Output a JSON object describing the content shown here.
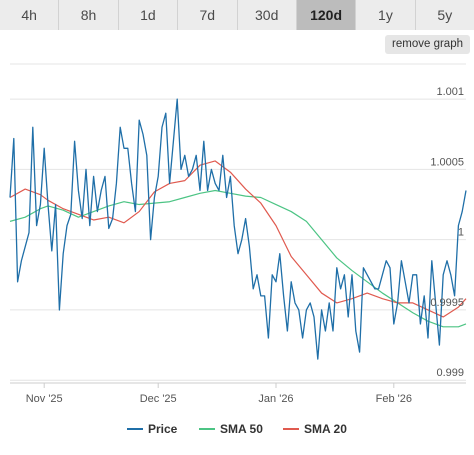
{
  "tabs": [
    {
      "label": "4h",
      "active": false
    },
    {
      "label": "8h",
      "active": false
    },
    {
      "label": "1d",
      "active": false
    },
    {
      "label": "7d",
      "active": false
    },
    {
      "label": "30d",
      "active": false
    },
    {
      "label": "120d",
      "active": true
    },
    {
      "label": "1y",
      "active": false
    },
    {
      "label": "5y",
      "active": false
    }
  ],
  "remove_graph_label": "remove graph",
  "colors": {
    "price": "#1f6fa8",
    "sma50": "#4cc484",
    "sma20": "#e05a4f",
    "grid": "#e4e4e4",
    "axis": "#cccccc"
  },
  "chart_data": {
    "type": "line",
    "x_ticks": [
      {
        "label": "Nov '25",
        "x": 9
      },
      {
        "label": "Dec '25",
        "x": 39
      },
      {
        "label": "Jan '26",
        "x": 70
      },
      {
        "label": "Feb '26",
        "x": 101
      }
    ],
    "y_ticks": [
      {
        "label": "0.999",
        "y": 0.999
      },
      {
        "label": "0.9995",
        "y": 0.9995
      },
      {
        "label": "1",
        "y": 1.0
      },
      {
        "label": "1.0005",
        "y": 1.0005
      },
      {
        "label": "1.001",
        "y": 1.001
      }
    ],
    "xlim": [
      0,
      120
    ],
    "ylim": [
      0.99898,
      1.00125
    ],
    "legend_position": "bottom",
    "series": [
      {
        "name": "Price",
        "color_key": "price",
        "x": [
          0,
          1,
          2,
          3,
          4,
          5,
          6,
          7,
          8,
          9,
          10,
          11,
          12,
          13,
          14,
          15,
          16,
          17,
          18,
          19,
          20,
          21,
          22,
          23,
          24,
          25,
          26,
          27,
          28,
          29,
          30,
          31,
          32,
          33,
          34,
          35,
          36,
          37,
          38,
          39,
          40,
          41,
          42,
          43,
          44,
          45,
          46,
          47,
          48,
          49,
          50,
          51,
          52,
          53,
          54,
          55,
          56,
          57,
          58,
          59,
          60,
          61,
          62,
          63,
          64,
          65,
          66,
          67,
          68,
          69,
          70,
          71,
          72,
          73,
          74,
          75,
          76,
          77,
          78,
          79,
          80,
          81,
          82,
          83,
          84,
          85,
          86,
          87,
          88,
          89,
          90,
          91,
          92,
          93,
          94,
          95,
          96,
          97,
          98,
          99,
          100,
          101,
          102,
          103,
          104,
          105,
          106,
          107,
          108,
          109,
          110,
          111,
          112,
          113,
          114,
          115,
          116,
          117,
          118,
          119,
          120
        ],
        "y": [
          1.0003,
          1.00072,
          0.9997,
          0.99985,
          0.99995,
          1.00005,
          1.0008,
          1.0001,
          1.00025,
          1.00065,
          1.00025,
          0.99992,
          1.00025,
          0.9995,
          0.9999,
          1.0001,
          1.00018,
          1.0007,
          1.00035,
          1.00015,
          1.0005,
          1.0001,
          1.00045,
          1.0002,
          1.00035,
          1.00045,
          1.00008,
          1.00015,
          1.0004,
          1.0008,
          1.00065,
          1.00065,
          1.0004,
          1.0002,
          1.00085,
          1.00075,
          1.0006,
          1.0,
          1.0003,
          1.00045,
          1.0008,
          1.0009,
          1.0004,
          1.0007,
          1.001,
          1.0005,
          1.0006,
          1.00045,
          1.0005,
          1.0006,
          1.00035,
          1.0007,
          1.00035,
          1.0005,
          1.0004,
          1.00035,
          1.0006,
          1.0003,
          1.00045,
          1.0001,
          0.9999,
          1.0,
          1.00015,
          0.99995,
          0.99965,
          0.99975,
          0.9996,
          0.9996,
          0.9993,
          0.99975,
          0.9997,
          0.9999,
          0.9996,
          0.99935,
          0.9997,
          0.99955,
          0.9995,
          0.9993,
          0.9995,
          0.99955,
          0.99945,
          0.99915,
          0.9995,
          0.99935,
          0.99955,
          0.99935,
          0.9998,
          0.99965,
          0.99975,
          0.99945,
          0.99975,
          0.99935,
          0.9992,
          0.9998,
          0.99975,
          0.9997,
          0.99965,
          0.99965,
          0.99975,
          0.99985,
          0.9998,
          0.9994,
          0.99955,
          0.99985,
          0.9997,
          0.99955,
          0.99975,
          0.99975,
          0.9994,
          0.9996,
          0.9993,
          0.99985,
          0.99955,
          0.99925,
          0.99975,
          0.99985,
          0.99975,
          0.9996,
          1.0001,
          1.0002,
          1.00035
        ]
      },
      {
        "name": "SMA 50",
        "color_key": "sma50",
        "x": [
          0,
          4,
          8,
          10,
          14,
          18,
          22,
          26,
          30,
          34,
          38,
          42,
          46,
          50,
          54,
          58,
          62,
          66,
          70,
          74,
          78,
          82,
          86,
          90,
          94,
          98,
          102,
          106,
          110,
          114,
          118,
          120
        ],
        "y": [
          1.00013,
          1.00016,
          1.00022,
          1.00024,
          1.00021,
          1.00016,
          1.0002,
          1.00024,
          1.00027,
          1.00025,
          1.00026,
          1.00027,
          1.0003,
          1.00033,
          1.00035,
          1.00033,
          1.00031,
          1.0003,
          1.00025,
          1.0002,
          1.00013,
          1.0,
          0.99987,
          0.99978,
          0.9997,
          0.99962,
          0.99955,
          0.99948,
          0.99942,
          0.99938,
          0.99938,
          0.9994
        ]
      },
      {
        "name": "SMA 20",
        "color_key": "sma20",
        "x": [
          0,
          4,
          8,
          10,
          14,
          18,
          22,
          26,
          30,
          34,
          38,
          42,
          46,
          50,
          54,
          58,
          62,
          66,
          70,
          74,
          78,
          82,
          86,
          90,
          94,
          98,
          102,
          106,
          110,
          114,
          118,
          120
        ],
        "y": [
          1.0003,
          1.00036,
          1.00032,
          1.00028,
          1.00022,
          1.00018,
          1.00014,
          1.00016,
          1.00012,
          1.0002,
          1.00034,
          1.0004,
          1.00042,
          1.00053,
          1.00056,
          1.00048,
          1.00036,
          1.00026,
          1.0001,
          0.99988,
          0.99975,
          0.99962,
          0.99955,
          0.99958,
          0.99962,
          0.99958,
          0.99955,
          0.99955,
          0.9995,
          0.99945,
          0.99952,
          0.99958
        ]
      }
    ]
  }
}
